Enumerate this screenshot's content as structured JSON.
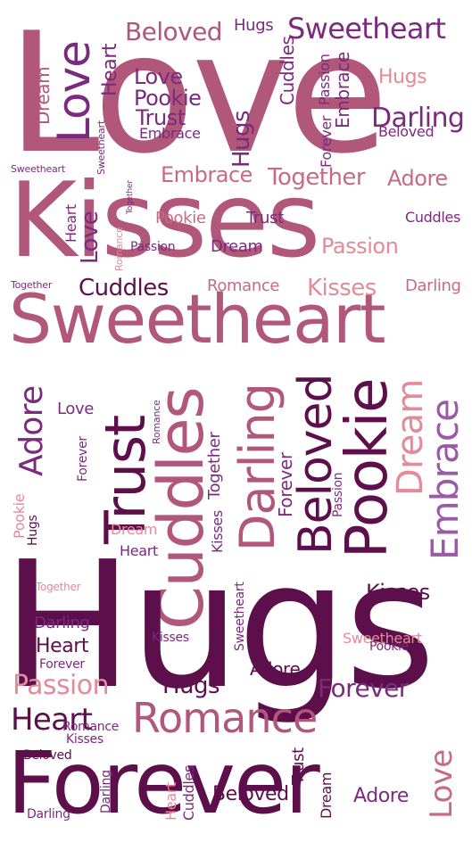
{
  "colors": {
    "plum": "#5c0f4a",
    "purple": "#7a2b7e",
    "mauve": "#b0577a",
    "rose": "#c76a84",
    "pink": "#e48a98",
    "lavender": "#9a5aa6"
  },
  "words": [
    {
      "text": "Love",
      "color": "mauve"
    },
    {
      "text": "Kisses",
      "color": "mauve"
    },
    {
      "text": "Beloved",
      "color": "mauve"
    },
    {
      "text": "Hugs",
      "color": "purple"
    },
    {
      "text": "Sweetheart",
      "color": "purple"
    },
    {
      "text": "Love",
      "color": "purple"
    },
    {
      "text": "Heart",
      "color": "purple"
    },
    {
      "text": "Love",
      "color": "purple"
    },
    {
      "text": "Pookie",
      "color": "purple"
    },
    {
      "text": "Trust",
      "color": "purple"
    },
    {
      "text": "Embrace",
      "color": "purple"
    },
    {
      "text": "Hugs",
      "color": "pink"
    },
    {
      "text": "Darling",
      "color": "purple"
    },
    {
      "text": "Beloved",
      "color": "purple"
    },
    {
      "text": "Dream",
      "color": "mauve"
    },
    {
      "text": "Passion",
      "color": "purple"
    },
    {
      "text": "Cuddles",
      "color": "purple"
    },
    {
      "text": "Embrace",
      "color": "purple"
    },
    {
      "text": "Hugs",
      "color": "purple"
    },
    {
      "text": "Forever",
      "color": "purple"
    },
    {
      "text": "Sweetheart",
      "color": "purple"
    },
    {
      "text": "Sweetheart",
      "color": "purple"
    },
    {
      "text": "Embrace",
      "color": "rose"
    },
    {
      "text": "Together",
      "color": "rose"
    },
    {
      "text": "Adore",
      "color": "rose"
    },
    {
      "text": "Pookie",
      "color": "rose"
    },
    {
      "text": "Trust",
      "color": "purple"
    },
    {
      "text": "Cuddles",
      "color": "purple"
    },
    {
      "text": "Heart",
      "color": "purple"
    },
    {
      "text": "Love",
      "color": "purple"
    },
    {
      "text": "Passion",
      "color": "purple"
    },
    {
      "text": "Dream",
      "color": "purple"
    },
    {
      "text": "Passion",
      "color": "pink"
    },
    {
      "text": "Romance",
      "color": "pink"
    },
    {
      "text": "Together",
      "color": "purple"
    },
    {
      "text": "Together",
      "color": "purple"
    },
    {
      "text": "Cuddles",
      "color": "plum"
    },
    {
      "text": "Romance",
      "color": "rose"
    },
    {
      "text": "Kisses",
      "color": "pink"
    },
    {
      "text": "Darling",
      "color": "rose"
    },
    {
      "text": "Sweetheart",
      "color": "mauve"
    },
    {
      "text": "Adore",
      "color": "purple"
    },
    {
      "text": "Trust",
      "color": "plum"
    },
    {
      "text": "Cuddles",
      "color": "mauve"
    },
    {
      "text": "Darling",
      "color": "mauve"
    },
    {
      "text": "Beloved",
      "color": "plum"
    },
    {
      "text": "Pookie",
      "color": "plum"
    },
    {
      "text": "Dream",
      "color": "pink"
    },
    {
      "text": "Embrace",
      "color": "lavender"
    },
    {
      "text": "Love",
      "color": "purple"
    },
    {
      "text": "Forever",
      "color": "purple"
    },
    {
      "text": "Romance",
      "color": "purple"
    },
    {
      "text": "Together",
      "color": "purple"
    },
    {
      "text": "Forever",
      "color": "purple"
    },
    {
      "text": "Kisses",
      "color": "purple"
    },
    {
      "text": "Passion",
      "color": "purple"
    },
    {
      "text": "Pookie",
      "color": "pink"
    },
    {
      "text": "Hugs",
      "color": "plum"
    },
    {
      "text": "Hugs",
      "color": "plum"
    },
    {
      "text": "Kisses",
      "color": "plum"
    },
    {
      "text": "Dream",
      "color": "pink"
    },
    {
      "text": "Heart",
      "color": "purple"
    },
    {
      "text": "Together",
      "color": "pink"
    },
    {
      "text": "Darling",
      "color": "purple"
    },
    {
      "text": "Heart",
      "color": "plum"
    },
    {
      "text": "Forever",
      "color": "purple"
    },
    {
      "text": "Passion",
      "color": "pink"
    },
    {
      "text": "Hugs",
      "color": "plum"
    },
    {
      "text": "Forever",
      "color": "purple"
    },
    {
      "text": "Heart",
      "color": "plum"
    },
    {
      "text": "Romance",
      "color": "mauve"
    },
    {
      "text": "Romance",
      "color": "purple"
    },
    {
      "text": "Kisses",
      "color": "purple"
    },
    {
      "text": "Beloved",
      "color": "plum"
    },
    {
      "text": "Forever",
      "color": "plum"
    },
    {
      "text": "Darling",
      "color": "purple"
    },
    {
      "text": "Beloved",
      "color": "plum"
    },
    {
      "text": "Adore",
      "color": "purple"
    },
    {
      "text": "Sweetheart",
      "color": "pink"
    },
    {
      "text": "Pookie",
      "color": "purple"
    },
    {
      "text": "Kisses",
      "color": "purple"
    },
    {
      "text": "Sweetheart",
      "color": "purple"
    },
    {
      "text": "Adore",
      "color": "plum"
    },
    {
      "text": "Trust",
      "color": "plum"
    },
    {
      "text": "Dream",
      "color": "plum"
    },
    {
      "text": "Love",
      "color": "rose"
    },
    {
      "text": "Darling",
      "color": "purple"
    },
    {
      "text": "Heart",
      "color": "pink"
    },
    {
      "text": "Cuddles",
      "color": "purple"
    }
  ]
}
